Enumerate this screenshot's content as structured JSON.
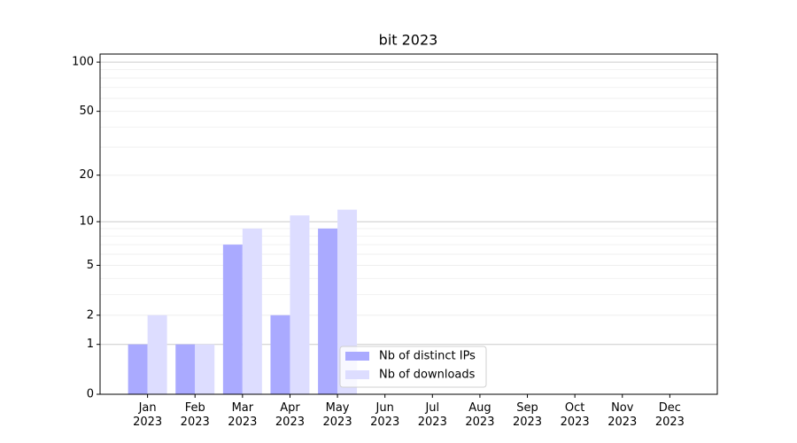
{
  "chart_data": {
    "type": "bar",
    "title": "bit 2023",
    "categories": [
      "Jan\n2023",
      "Feb\n2023",
      "Mar\n2023",
      "Apr\n2023",
      "May\n2023",
      "Jun\n2023",
      "Jul\n2023",
      "Aug\n2023",
      "Sep\n2023",
      "Oct\n2023",
      "Nov\n2023",
      "Dec\n2023"
    ],
    "series": [
      {
        "name": "Nb of distinct IPs",
        "color": "#aaaaff",
        "values": [
          1,
          1,
          7,
          2,
          9,
          null,
          null,
          null,
          null,
          null,
          null,
          null
        ]
      },
      {
        "name": "Nb of downloads",
        "color": "#ddddff",
        "values": [
          2,
          1,
          9,
          11,
          12,
          null,
          null,
          null,
          null,
          null,
          null,
          null
        ]
      }
    ],
    "yscale": "log1p",
    "ylim": [
      0,
      112
    ],
    "yticks": [
      0,
      1,
      2,
      5,
      10,
      20,
      50,
      100
    ],
    "minor_yticks": [
      3,
      4,
      6,
      7,
      8,
      9,
      30,
      40,
      60,
      70,
      80,
      90
    ],
    "grid": true,
    "legend": "lower center"
  }
}
